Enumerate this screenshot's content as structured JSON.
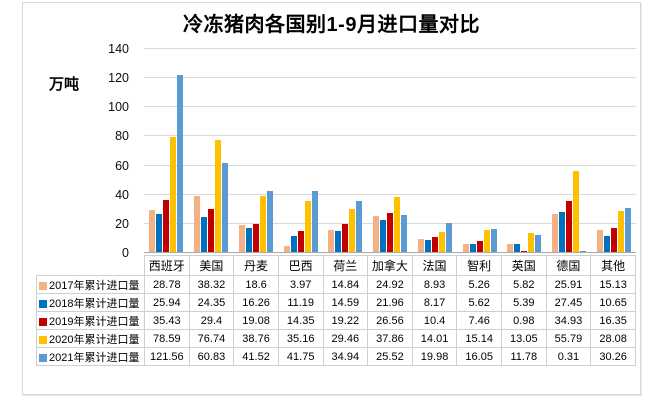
{
  "chart_data": {
    "type": "bar",
    "title": "冷冻猪肉各国别1-9月进口量对比",
    "xlabel": "",
    "ylabel": "万吨",
    "ylim": [
      0,
      140
    ],
    "yticks": [
      0,
      20,
      40,
      60,
      80,
      100,
      120,
      140
    ],
    "grid": true,
    "legend_position": "data-table-left",
    "data_table_shown": true,
    "categories": [
      "西班牙",
      "美国",
      "丹麦",
      "巴西",
      "荷兰",
      "加拿大",
      "法国",
      "智利",
      "英国",
      "德国",
      "其他"
    ],
    "series": [
      {
        "name": "2017年累计进口量",
        "color": "#F4B183",
        "values": [
          28.78,
          38.32,
          18.6,
          3.97,
          14.84,
          24.92,
          8.93,
          5.26,
          5.82,
          25.91,
          15.13
        ]
      },
      {
        "name": "2018年累计进口量",
        "color": "#0070C0",
        "values": [
          25.94,
          24.35,
          16.26,
          11.19,
          14.59,
          21.96,
          8.17,
          5.62,
          5.39,
          27.45,
          10.65
        ]
      },
      {
        "name": "2019年累计进口量",
        "color": "#C00000",
        "values": [
          35.43,
          29.4,
          19.08,
          14.35,
          19.22,
          26.56,
          10.4,
          7.46,
          0.98,
          34.93,
          16.35
        ]
      },
      {
        "name": "2020年累计进口量",
        "color": "#FFC000",
        "values": [
          78.59,
          76.74,
          38.76,
          35.16,
          29.46,
          37.86,
          14.01,
          15.14,
          13.05,
          55.79,
          28.08
        ]
      },
      {
        "name": "2021年累计进口量",
        "color": "#5B9BD5",
        "values": [
          121.56,
          60.83,
          41.52,
          41.75,
          34.94,
          25.52,
          19.98,
          16.05,
          11.78,
          0.31,
          30.26
        ]
      }
    ],
    "colors": {
      "grid": "#d9d9d9",
      "axis": "#a9a9a9",
      "frame_border": "#d9d9d9",
      "table_border": "#cfcfcf"
    }
  }
}
